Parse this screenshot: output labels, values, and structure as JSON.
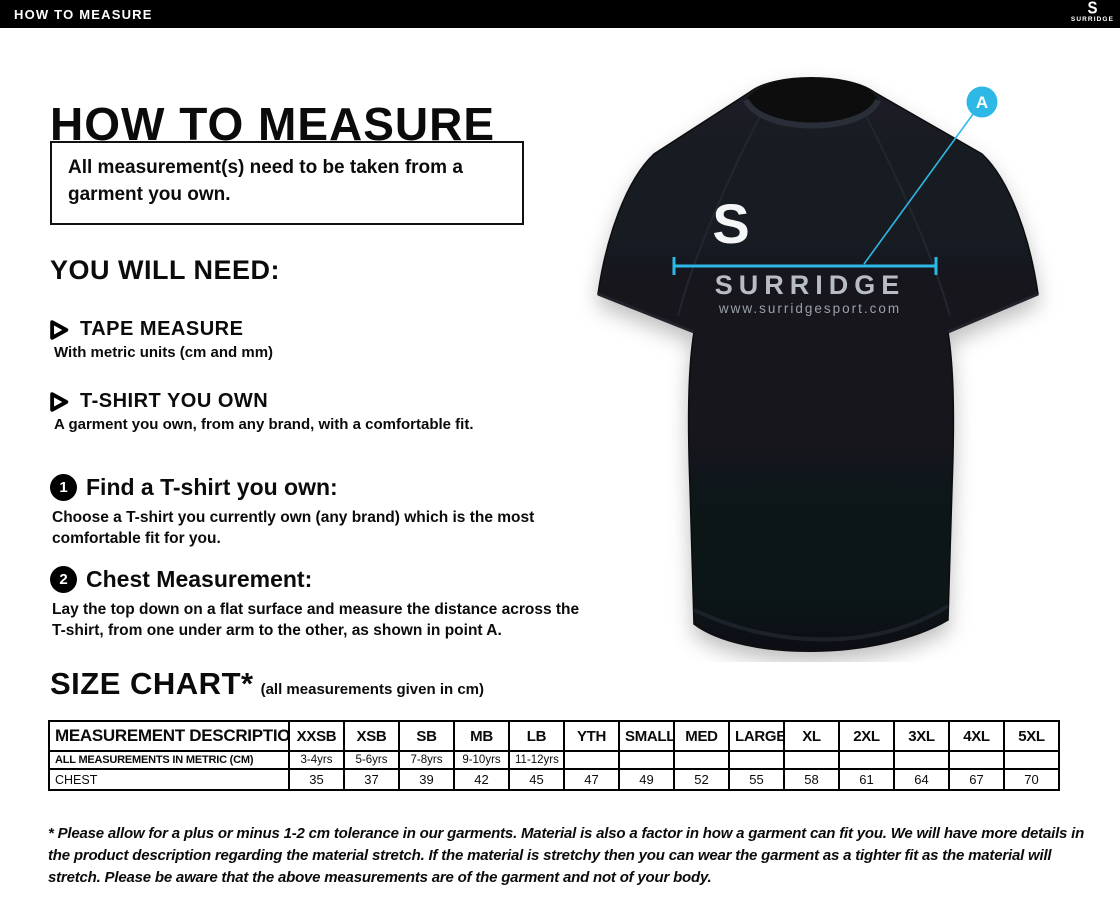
{
  "topbar": {
    "title": "HOW TO MEASURE",
    "brand_glyph": "S",
    "brand": "SURRIDGE",
    "bg": "#000000",
    "fg": "#ffffff"
  },
  "intro": {
    "heading": "HOW TO MEASURE",
    "note": "All measurement(s) need to be taken from a garment you own.",
    "you_will_need": "YOU WILL NEED:",
    "items": [
      {
        "title": "TAPE MEASURE",
        "desc": "With metric units (cm and mm)"
      },
      {
        "title": "T-SHIRT YOU OWN",
        "desc": "A garment you own, from any brand, with a comfortable fit."
      }
    ],
    "steps": [
      {
        "num": "1",
        "title": "Find a T-shirt you own:",
        "desc": "Choose a T-shirt you currently own (any brand) which is the most comfortable fit for you."
      },
      {
        "num": "2",
        "title": "Chest Measurement:",
        "desc": "Lay the top down on a flat surface and measure the distance across the T-shirt, from one under arm to the other, as shown in point A."
      }
    ]
  },
  "size_chart": {
    "heading": "SIZE CHART*",
    "subheading": "(all measurements given in cm)",
    "columns": [
      "MEASUREMENT DESCRIPTION",
      "XXSB",
      "XSB",
      "SB",
      "MB",
      "LB",
      "YTH",
      "SMALL",
      "MED",
      "LARGE",
      "XL",
      "2XL",
      "3XL",
      "4XL",
      "5XL"
    ],
    "rows": [
      [
        "ALL MEASUREMENTS IN METRIC (CM)",
        "3-4yrs",
        "5-6yrs",
        "7-8yrs",
        "9-10yrs",
        "11-12yrs",
        "",
        "",
        "",
        "",
        "",
        "",
        "",
        "",
        ""
      ],
      [
        "CHEST",
        "35",
        "37",
        "39",
        "42",
        "45",
        "47",
        "49",
        "52",
        "55",
        "58",
        "61",
        "64",
        "67",
        "70"
      ]
    ]
  },
  "footnote": "* Please allow for a plus or minus 1-2 cm tolerance in our garments. Material is also a factor in how a garment can fit you. We will have more details in the product description regarding the material stretch.  If the material is stretchy then you can wear the garment as a tighter fit as the material will stretch.  Please be aware that the above measurements are of the garment and not of your body.",
  "figure": {
    "shirt_logo": "S",
    "brand": "SURRIDGE",
    "website": "www.surridgesport.com",
    "point_label": "A",
    "accent_color": "#2eb8e6",
    "shirt_color": "#14171d"
  }
}
